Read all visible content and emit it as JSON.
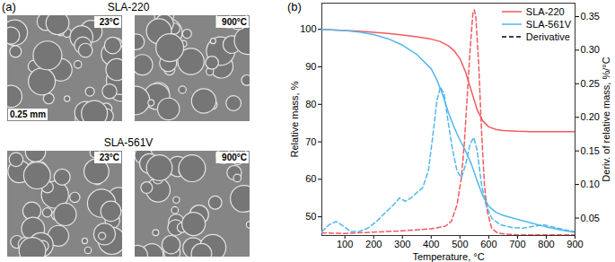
{
  "panel_a": {
    "label": "(a)",
    "groups": [
      {
        "title": "SLA-220",
        "images": [
          "23°C",
          "900°C"
        ]
      },
      {
        "title": "SLA-561V",
        "images": [
          "23°C",
          "900°C"
        ]
      }
    ],
    "scale_bar": "0.25 mm"
  },
  "chart_data": {
    "type": "line",
    "title": "(b)",
    "x_label": "Temperature, °C",
    "y_label": "Relative mass, %",
    "y2_label": "Deriv. of relative mass, %/°C",
    "xlim": [
      20,
      900
    ],
    "xticks": [
      100,
      200,
      300,
      400,
      500,
      600,
      700,
      800,
      900
    ],
    "ylim": [
      45,
      107
    ],
    "yticks": [
      50,
      60,
      70,
      80,
      90,
      100
    ],
    "y2lim": [
      0.024,
      0.37
    ],
    "y2ticks": [
      0.05,
      {
        "value": 0.1,
        "label": "0.10"
      },
      0.15,
      {
        "value": 0.2,
        "label": "0.20"
      },
      0.25,
      {
        "value": 0.3,
        "label": "0.30"
      },
      0.35
    ],
    "legend": "top-right",
    "legend_entries": [
      {
        "name": "SLA-220",
        "color": "#f15a60",
        "line_style": "solid"
      },
      {
        "name": "SLA-561V",
        "color": "#52b7ee",
        "line_style": "solid"
      },
      {
        "name": "Derivative",
        "color": "#000000",
        "line_style": "dashed"
      }
    ],
    "series": [
      {
        "name": "SLA-220",
        "color": "#f15a60",
        "line_style": "solid",
        "x": [
          20,
          50,
          100,
          150,
          200,
          250,
          300,
          350,
          400,
          430,
          460,
          480,
          500,
          520,
          540,
          560,
          580,
          600,
          625,
          650,
          700,
          750,
          800,
          850,
          900
        ],
        "values": [
          100,
          99.9,
          99.7,
          99.5,
          99.2,
          98.9,
          98.5,
          98.0,
          97.4,
          96.8,
          95.6,
          94.3,
          92.2,
          88.5,
          83.5,
          78.5,
          75.5,
          74.0,
          73.3,
          73.0,
          72.8,
          72.7,
          72.7,
          72.7,
          72.7
        ]
      },
      {
        "name": "SLA-561V",
        "color": "#52b7ee",
        "line_style": "solid",
        "x": [
          20,
          50,
          100,
          150,
          200,
          250,
          300,
          350,
          400,
          420,
          440,
          460,
          480,
          500,
          520,
          540,
          560,
          580,
          600,
          625,
          650,
          700,
          750,
          800,
          850,
          900
        ],
        "values": [
          100,
          99.9,
          99.7,
          99.3,
          98.6,
          97.5,
          95.8,
          93.3,
          89.5,
          86.5,
          82.5,
          77.8,
          73.8,
          70.5,
          67.5,
          64.0,
          59.5,
          55.5,
          52.8,
          51.2,
          50.4,
          49.3,
          48.3,
          47.3,
          46.5,
          45.8
        ]
      },
      {
        "name": "SLA-220",
        "color": "#f15a60",
        "line_style": "dashed",
        "axis": "y2",
        "x": [
          20,
          100,
          200,
          300,
          400,
          450,
          470,
          490,
          505,
          515,
          525,
          535,
          545,
          550,
          555,
          565,
          575,
          585,
          595,
          610,
          630,
          660,
          700,
          800,
          900
        ],
        "values": [
          0.028,
          0.027,
          0.029,
          0.031,
          0.034,
          0.038,
          0.045,
          0.07,
          0.11,
          0.16,
          0.23,
          0.3,
          0.355,
          0.36,
          0.35,
          0.28,
          0.18,
          0.1,
          0.06,
          0.035,
          0.028,
          0.026,
          0.025,
          0.025,
          0.025
        ]
      },
      {
        "name": "SLA-561V",
        "color": "#52b7ee",
        "line_style": "dashed",
        "axis": "y2",
        "x": [
          20,
          45,
          70,
          95,
          120,
          150,
          180,
          210,
          240,
          270,
          290,
          310,
          330,
          350,
          370,
          390,
          405,
          420,
          432,
          445,
          460,
          475,
          490,
          505,
          520,
          535,
          548,
          560,
          575,
          590,
          610,
          640,
          680,
          720,
          760,
          790,
          830,
          870,
          900
        ],
        "values": [
          0.03,
          0.04,
          0.045,
          0.038,
          0.03,
          0.03,
          0.035,
          0.045,
          0.058,
          0.07,
          0.08,
          0.075,
          0.08,
          0.088,
          0.095,
          0.12,
          0.17,
          0.225,
          0.245,
          0.235,
          0.19,
          0.15,
          0.12,
          0.11,
          0.13,
          0.16,
          0.17,
          0.15,
          0.1,
          0.07,
          0.05,
          0.04,
          0.036,
          0.035,
          0.038,
          0.04,
          0.036,
          0.032,
          0.03
        ]
      }
    ]
  }
}
